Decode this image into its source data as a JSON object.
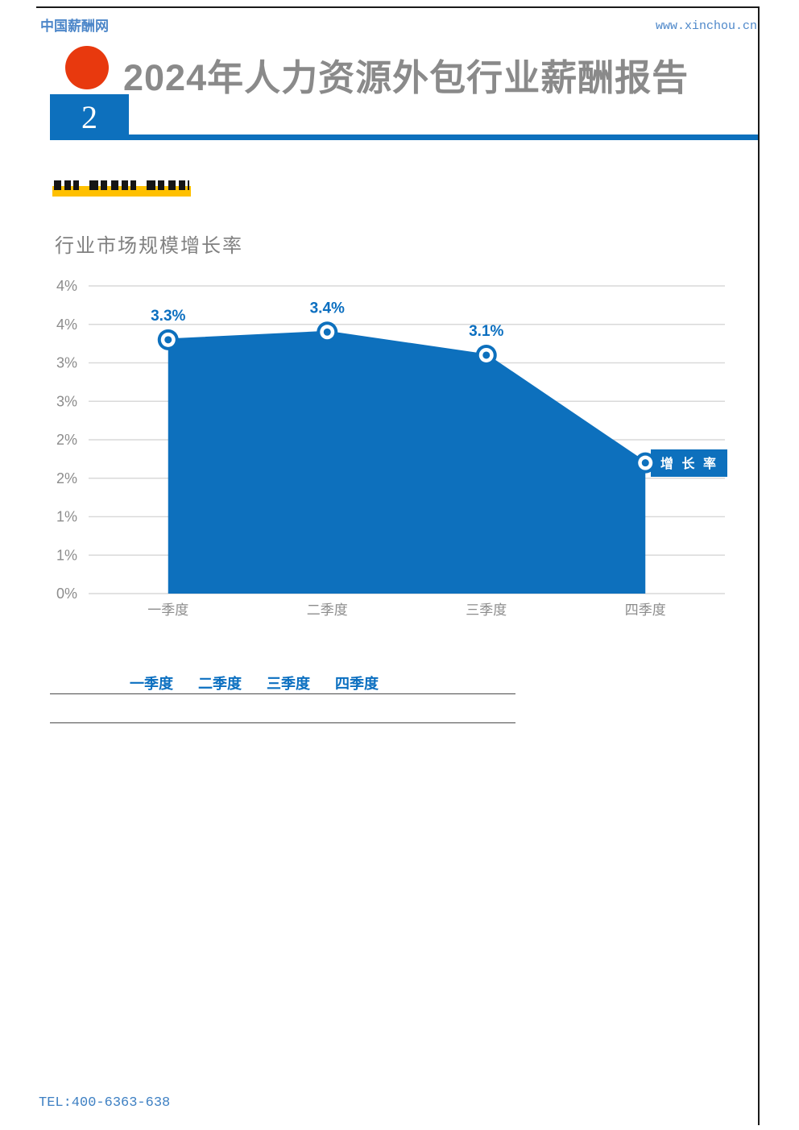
{
  "page": {
    "site_name": "中国薪酬网",
    "site_url": "www.xinchou.cn",
    "title": "2024年人力资源外包行业薪酬报告",
    "page_number": "2",
    "footer_tel": "TEL:400-6363-638"
  },
  "section": {
    "heading_obscured": true,
    "highlight_color": "#ffc000"
  },
  "chart_data": {
    "type": "area",
    "title": "行业市场规模增长率",
    "categories": [
      "一季度",
      "二季度",
      "三季度",
      "四季度"
    ],
    "series": [
      {
        "name": "增长率",
        "values": [
          3.3,
          3.4,
          3.1,
          1.7
        ]
      }
    ],
    "point_labels": [
      "3.3%",
      "3.4%",
      "3.1%",
      ""
    ],
    "y_ticks": {
      "values": [
        4,
        3.5,
        3,
        2.5,
        2,
        1.5,
        1,
        0.5,
        0
      ],
      "labels": [
        "4%",
        "4%",
        "3%",
        "3%",
        "2%",
        "2%",
        "1%",
        "1%",
        "0%"
      ]
    },
    "ylim": [
      0,
      4
    ],
    "grid": true,
    "legend": {
      "label": "增 长 率",
      "position": "right"
    },
    "colors": {
      "area": "#0d70bd",
      "label": "#0b6fc0",
      "grid": "#d9d9d9",
      "axis_text": "#8c8c8c",
      "legend_text": "#ffffff"
    }
  },
  "table": {
    "headers": [
      "一季度",
      "二季度",
      "三季度",
      "四季度"
    ]
  }
}
